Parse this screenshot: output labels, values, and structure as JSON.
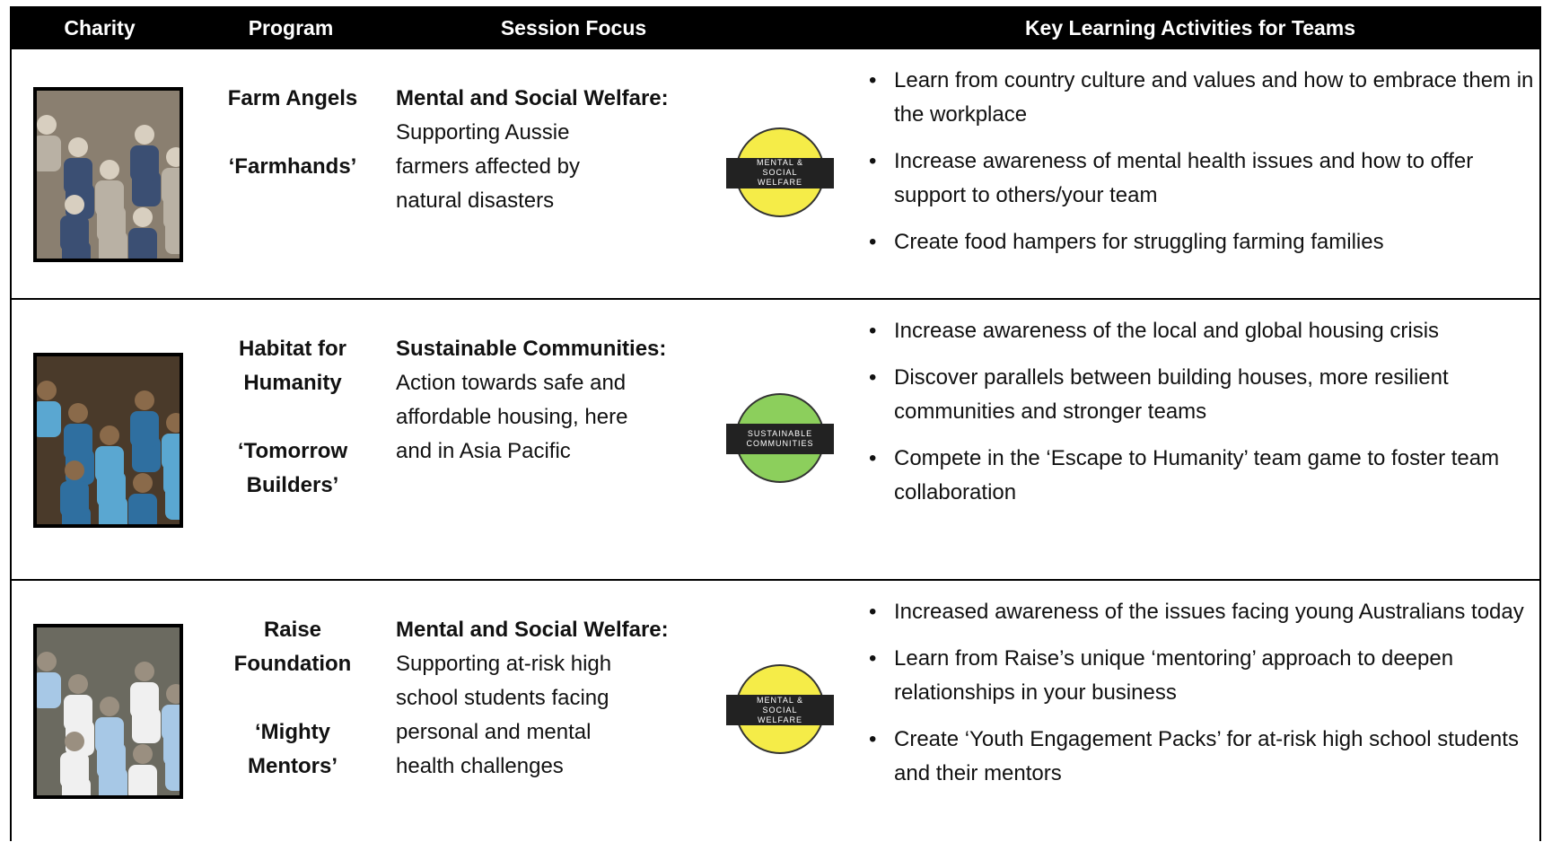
{
  "table": {
    "header": [
      "Charity",
      "Program",
      "Session Focus",
      "Key Learning Activities for Teams"
    ],
    "rows": [
      {
        "program": "Farm Angels",
        "nickname": "‘Farmhands’",
        "focus_title": "Mental and Social Welfare:",
        "focus_text": "Supporting Aussie farmers affected by natural disasters",
        "badge": "MENTAL & SOCIAL WELFARE",
        "badge_color": "#f5ec48",
        "activities": [
          "Learn from country culture and values and how to embrace them in the workplace",
          "Increase awareness of mental health issues and how to offer support to others/your team",
          "Create food hampers for struggling farming families"
        ]
      },
      {
        "program": "Habitat for Humanity",
        "nickname": "‘Tomorrow Builders’",
        "focus_title": "Sustainable Communities:",
        "focus_text": "Action towards safe and affordable housing, here and in Asia Pacific",
        "badge": "SUSTAINABLE COMMUNITIES",
        "badge_color": "#8ccf5c",
        "activities": [
          "Increase awareness of the local and global housing crisis",
          "Discover parallels between building houses, more resilient communities and stronger teams",
          "Compete in the ‘Escape to Humanity’ team game to foster team collaboration"
        ]
      },
      {
        "program": "Raise Foundation",
        "nickname": "‘Mighty Mentors’",
        "focus_title": "Mental and Social Welfare:",
        "focus_text": "Supporting at-risk high school students facing personal and mental health challenges",
        "badge": "MENTAL & SOCIAL WELFARE",
        "badge_color": "#f5ec48",
        "activities": [
          "Increased awareness of the issues facing young Australians today",
          "Learn from Raise’s unique ‘mentoring’ approach to deepen relationships in your business",
          "Create ‘Youth Engagement Packs’ for at-risk high school students and their mentors"
        ]
      }
    ]
  }
}
